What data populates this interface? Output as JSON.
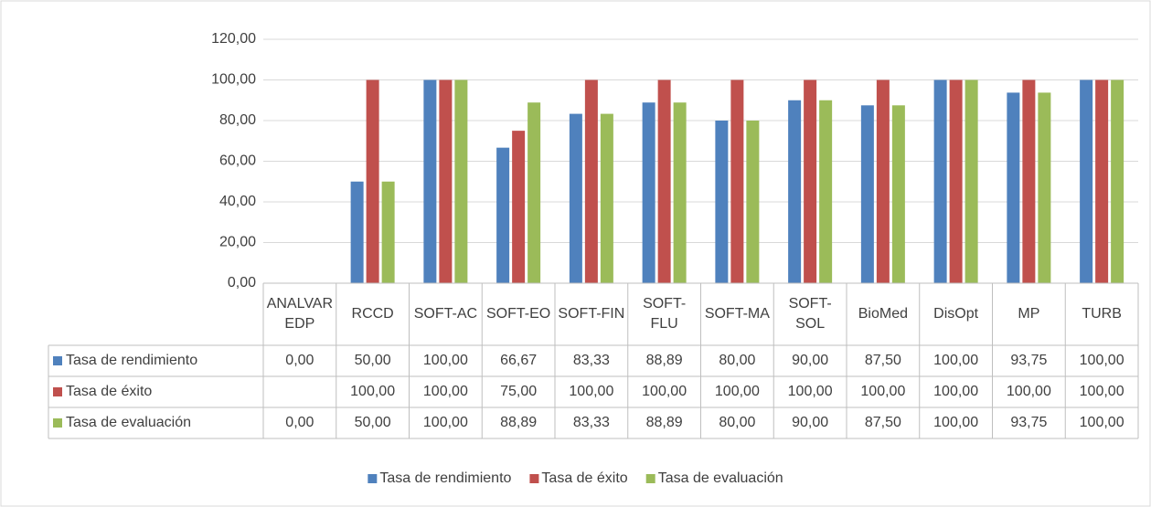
{
  "chart_data": {
    "type": "bar",
    "categories": [
      "ANALVAREDP",
      "RCCD",
      "SOFT-AC",
      "SOFT-EO",
      "SOFT-FIN",
      "SOFT-FLU",
      "SOFT-MA",
      "SOFT-SOL",
      "BioMed",
      "DisOpt",
      "MP",
      "TURB"
    ],
    "series": [
      {
        "name": "Tasa de rendimiento",
        "color": "#4f81bd",
        "values": [
          0,
          50,
          100,
          66.67,
          83.33,
          88.89,
          80,
          90,
          87.5,
          100,
          93.75,
          100
        ],
        "value_labels": [
          "0,00",
          "50,00",
          "100,00",
          "66,67",
          "83,33",
          "88,89",
          "80,00",
          "90,00",
          "87,50",
          "100,00",
          "93,75",
          "100,00"
        ]
      },
      {
        "name": "Tasa de éxito",
        "color": "#c0504d",
        "values": [
          null,
          100,
          100,
          75,
          100,
          100,
          100,
          100,
          100,
          100,
          100,
          100
        ],
        "value_labels": [
          null,
          "100,00",
          "100,00",
          "75,00",
          "100,00",
          "100,00",
          "100,00",
          "100,00",
          "100,00",
          "100,00",
          "100,00",
          "100,00"
        ]
      },
      {
        "name": "Tasa de evaluación",
        "color": "#9bbb59",
        "values": [
          0,
          50,
          100,
          88.89,
          83.33,
          88.89,
          80,
          90,
          87.5,
          100,
          93.75,
          100
        ],
        "value_labels": [
          "0,00",
          "50,00",
          "100,00",
          "88,89",
          "83,33",
          "88,89",
          "80,00",
          "90,00",
          "87,50",
          "100,00",
          "93,75",
          "100,00"
        ]
      }
    ],
    "ylim": [
      0,
      120
    ],
    "yticks": [
      {
        "value": 0,
        "label": "0,00"
      },
      {
        "value": 20,
        "label": "20,00"
      },
      {
        "value": 40,
        "label": "40,00"
      },
      {
        "value": 60,
        "label": "60,00"
      },
      {
        "value": 80,
        "label": "80,00"
      },
      {
        "value": 100,
        "label": "100,00"
      },
      {
        "value": 120,
        "label": "120,00"
      }
    ],
    "grid": true,
    "legend": "bottom"
  }
}
